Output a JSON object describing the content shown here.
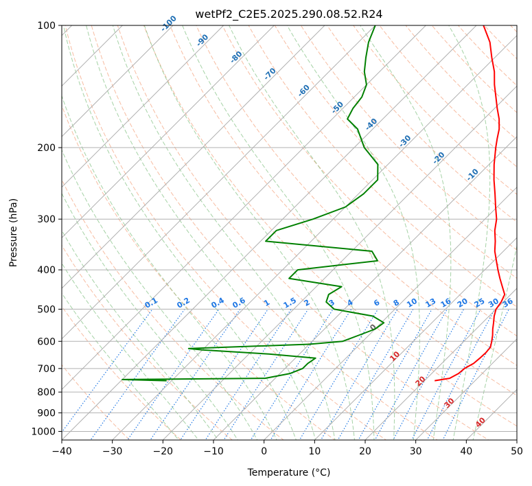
{
  "chart_data": {
    "type": "line",
    "title": "wetPf2_C2E5.2025.290.08.52.R24",
    "xlabel": "Temperature (°C)",
    "ylabel": "Pressure (hPa)",
    "xlim": [
      -40,
      50
    ],
    "ylim": [
      1050,
      100
    ],
    "y_scale": "log",
    "skew": "skew-T log-p diagram",
    "x_ticks": [
      "−40",
      "−30",
      "−20",
      "−10",
      "0",
      "10",
      "20",
      "30",
      "40",
      "50"
    ],
    "y_ticks": [
      100,
      200,
      300,
      400,
      500,
      600,
      700,
      800,
      900,
      1000
    ],
    "grid": true,
    "colors": {
      "temperature": "#ff0000",
      "dewpoint": "#008000",
      "dry_adiabat": "#f4a582",
      "moist_adiabat": "#7fbf7f",
      "mixing_ratio": "#1f77e4",
      "isotherm_labels": "#1f6fb4",
      "warm_isotherm_labels": "#d62728",
      "zero_isotherm": "#606060",
      "grid": "#b0b0b0"
    },
    "isotherm_labels": [
      {
        "text": "-100",
        "value": -100
      },
      {
        "text": "-90",
        "value": -90
      },
      {
        "text": "-80",
        "value": -80
      },
      {
        "text": "-70",
        "value": -70
      },
      {
        "text": "-60",
        "value": -60
      },
      {
        "text": "-50",
        "value": -50
      },
      {
        "text": "-40",
        "value": -40
      },
      {
        "text": "-30",
        "value": -30
      },
      {
        "text": "-20",
        "value": -20
      },
      {
        "text": "-10",
        "value": -10
      },
      {
        "text": "0",
        "value": 0
      },
      {
        "text": "10",
        "value": 10
      },
      {
        "text": "20",
        "value": 20
      },
      {
        "text": "30",
        "value": 30
      },
      {
        "text": "40",
        "value": 40
      }
    ],
    "mixing_ratio_labels": [
      "0.1",
      "0.2",
      "0.4",
      "0.6",
      "1",
      "1.5",
      "2",
      "3",
      "4",
      "6",
      "8",
      "10",
      "13",
      "16",
      "20",
      "25",
      "30",
      "36"
    ],
    "series": [
      {
        "key": "temperature",
        "points": [
          {
            "p": 750,
            "t": 22.0
          },
          {
            "p": 740,
            "t": 24.5
          },
          {
            "p": 720,
            "t": 25.3
          },
          {
            "p": 700,
            "t": 25.5
          },
          {
            "p": 680,
            "t": 26.3
          },
          {
            "p": 660,
            "t": 26.5
          },
          {
            "p": 640,
            "t": 26.6
          },
          {
            "p": 620,
            "t": 26.4
          },
          {
            "p": 600,
            "t": 25.5
          },
          {
            "p": 580,
            "t": 24.5
          },
          {
            "p": 560,
            "t": 23.3
          },
          {
            "p": 540,
            "t": 22.2
          },
          {
            "p": 520,
            "t": 21.0
          },
          {
            "p": 500,
            "t": 20.0
          },
          {
            "p": 480,
            "t": 19.6
          },
          {
            "p": 460,
            "t": 18.8
          },
          {
            "p": 440,
            "t": 16.8
          },
          {
            "p": 420,
            "t": 14.7
          },
          {
            "p": 400,
            "t": 12.6
          },
          {
            "p": 380,
            "t": 10.5
          },
          {
            "p": 360,
            "t": 8.3
          },
          {
            "p": 340,
            "t": 6.4
          },
          {
            "p": 320,
            "t": 4.2
          },
          {
            "p": 300,
            "t": 2.3
          },
          {
            "p": 280,
            "t": -0.3
          },
          {
            "p": 260,
            "t": -3.0
          },
          {
            "p": 240,
            "t": -6.0
          },
          {
            "p": 220,
            "t": -9.0
          },
          {
            "p": 200,
            "t": -12.0
          },
          {
            "p": 190,
            "t": -13.5
          },
          {
            "p": 180,
            "t": -15.0
          },
          {
            "p": 170,
            "t": -17.0
          },
          {
            "p": 160,
            "t": -19.5
          },
          {
            "p": 150,
            "t": -22.0
          },
          {
            "p": 140,
            "t": -24.7
          },
          {
            "p": 130,
            "t": -27.3
          },
          {
            "p": 120,
            "t": -30.6
          },
          {
            "p": 110,
            "t": -34.0
          },
          {
            "p": 100,
            "t": -38.6
          }
        ]
      },
      {
        "key": "dewpoint",
        "points": [
          {
            "p": 750,
            "t": -31.0
          },
          {
            "p": 745,
            "t": -40.0
          },
          {
            "p": 740,
            "t": -12.0
          },
          {
            "p": 720,
            "t": -8.0
          },
          {
            "p": 700,
            "t": -6.5
          },
          {
            "p": 680,
            "t": -6.5
          },
          {
            "p": 660,
            "t": -6.0
          },
          {
            "p": 645,
            "t": -16.0
          },
          {
            "p": 630,
            "t": -30.0
          },
          {
            "p": 625,
            "t": -33.0
          },
          {
            "p": 610,
            "t": -10.0
          },
          {
            "p": 600,
            "t": -4.0
          },
          {
            "p": 580,
            "t": -2.0
          },
          {
            "p": 560,
            "t": 0.0
          },
          {
            "p": 540,
            "t": 0.5
          },
          {
            "p": 520,
            "t": -3.0
          },
          {
            "p": 500,
            "t": -12.0
          },
          {
            "p": 480,
            "t": -15.0
          },
          {
            "p": 460,
            "t": -16.0
          },
          {
            "p": 440,
            "t": -15.0
          },
          {
            "p": 420,
            "t": -27.0
          },
          {
            "p": 400,
            "t": -27.0
          },
          {
            "p": 380,
            "t": -13.0
          },
          {
            "p": 360,
            "t": -16.0
          },
          {
            "p": 340,
            "t": -39.0
          },
          {
            "p": 320,
            "t": -39.0
          },
          {
            "p": 300,
            "t": -34.0
          },
          {
            "p": 280,
            "t": -30.0
          },
          {
            "p": 260,
            "t": -29.0
          },
          {
            "p": 240,
            "t": -29.0
          },
          {
            "p": 220,
            "t": -32.0
          },
          {
            "p": 200,
            "t": -38.0
          },
          {
            "p": 180,
            "t": -43.0
          },
          {
            "p": 170,
            "t": -47.0
          },
          {
            "p": 160,
            "t": -48.0
          },
          {
            "p": 150,
            "t": -48.5
          },
          {
            "p": 140,
            "t": -50.0
          },
          {
            "p": 130,
            "t": -53.0
          },
          {
            "p": 120,
            "t": -55.5
          },
          {
            "p": 110,
            "t": -58.0
          },
          {
            "p": 100,
            "t": -60.0
          }
        ]
      }
    ]
  }
}
